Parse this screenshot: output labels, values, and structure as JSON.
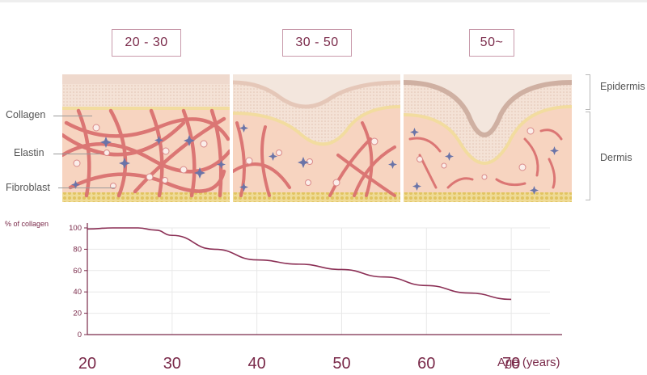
{
  "age_groups": [
    "20 - 30",
    "30 - 50",
    "50~"
  ],
  "layer_labels": {
    "collagen": "Collagen",
    "elastin": "Elastin",
    "fibroblast": "Fibroblast",
    "epidermis": "Epidermis",
    "dermis": "Dermis"
  },
  "colors": {
    "accent": "#7a2a4a",
    "collagen_fiber": "#d96c6c",
    "elastin_star": "#6a74a8",
    "dermis": "#f7d4c0",
    "epidermis": "#f3ddd0",
    "fat": "#e9cf7c"
  },
  "chart_data": {
    "type": "line",
    "ylabel": "% of collagen",
    "xlabel": "Age (years)",
    "x_ticks": [
      20,
      30,
      40,
      50,
      60,
      70
    ],
    "y_ticks": [
      0,
      20,
      40,
      60,
      80,
      100
    ],
    "xlim": [
      20,
      76
    ],
    "ylim": [
      0,
      100
    ],
    "grid": true,
    "series": [
      {
        "x": [
          20,
          23,
          26,
          28,
          30,
          35,
          40,
          45,
          50,
          55,
          60,
          65,
          70
        ],
        "y": [
          99,
          100,
          100,
          98,
          93,
          80,
          70,
          66,
          61,
          54,
          46,
          39,
          33
        ]
      }
    ]
  }
}
